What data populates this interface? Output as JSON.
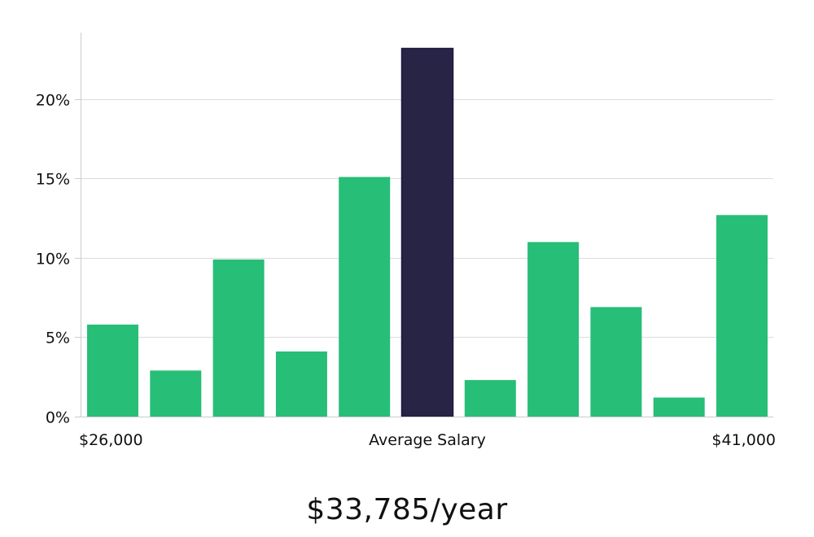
{
  "colors": {
    "bar": "#27be77",
    "bar_highlight": "#282446",
    "grid": "#dcdcdc",
    "axis": "#cccccc",
    "text": "#111111"
  },
  "chart_data": {
    "type": "bar",
    "title": "",
    "xlabel": "Average Salary",
    "ylabel": "",
    "x_min_label": "$26,000",
    "x_max_label": "$41,000",
    "ylim": [
      0,
      24.2
    ],
    "yticks": [
      {
        "value": 0,
        "label": "0%"
      },
      {
        "value": 5,
        "label": "5%"
      },
      {
        "value": 10,
        "label": "10%"
      },
      {
        "value": 15,
        "label": "15%"
      },
      {
        "value": 20,
        "label": "20%"
      }
    ],
    "values": [
      5.8,
      2.9,
      9.9,
      4.1,
      15.1,
      23.2,
      2.3,
      11.0,
      6.9,
      1.2,
      12.7
    ],
    "highlight_index": 5
  },
  "summary": {
    "average_salary": "$33,785/year"
  }
}
